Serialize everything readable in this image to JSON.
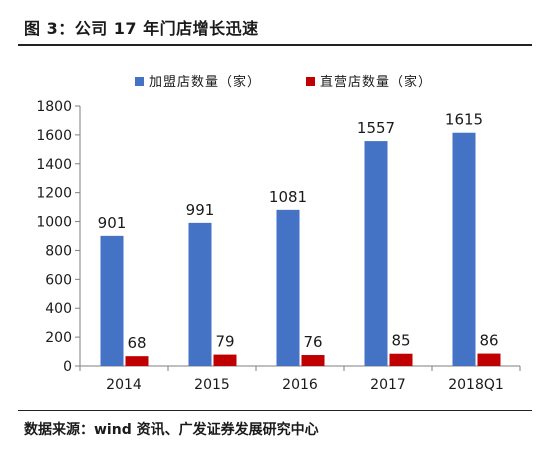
{
  "figure": {
    "title": "图 3：公司 17 年门店增长迅速",
    "source": "数据来源：wind 资讯、广发证券发展研究中心"
  },
  "chart_data": {
    "type": "bar",
    "categories": [
      "2014",
      "2015",
      "2016",
      "2017",
      "2018Q1"
    ],
    "series": [
      {
        "name": "加盟店数量（家）",
        "values": [
          901,
          991,
          1081,
          1557,
          1615
        ],
        "color": "#4472C4"
      },
      {
        "name": "直营店数量（家）",
        "values": [
          68,
          79,
          76,
          85,
          86
        ],
        "color": "#C00000"
      }
    ],
    "ylim": [
      0,
      1800
    ],
    "yticks": [
      0,
      200,
      400,
      600,
      800,
      1000,
      1200,
      1400,
      1600,
      1800
    ],
    "grid": false,
    "legend": "top-center"
  }
}
